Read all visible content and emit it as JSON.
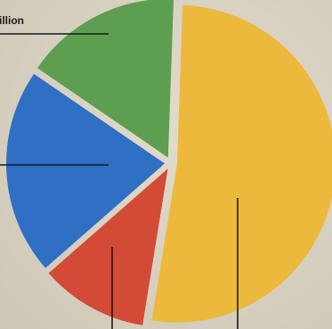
{
  "chart_data": {
    "type": "pie",
    "slices": [
      {
        "value": 52,
        "color": "#ecb93c"
      },
      {
        "value": 11,
        "color": "#d34a36"
      },
      {
        "value": 21,
        "color": "#2f6fc4"
      },
      {
        "value": 16,
        "color": "#5e9e50"
      }
    ],
    "annotations": [
      "illion"
    ],
    "legend": "none",
    "grid": false
  }
}
